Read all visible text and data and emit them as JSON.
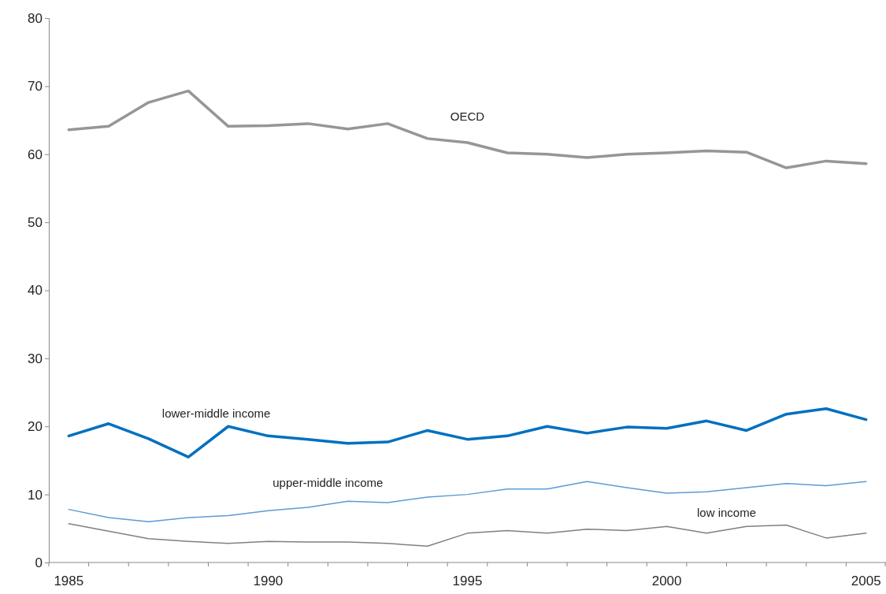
{
  "chart_data": {
    "type": "line",
    "categories": [
      "1985",
      null,
      null,
      null,
      null,
      "1990",
      null,
      null,
      null,
      null,
      "1995",
      null,
      null,
      null,
      null,
      "2000",
      null,
      null,
      null,
      null,
      "2005"
    ],
    "series": [
      {
        "name": "OECD",
        "color": "#969696",
        "values": [
          63.6,
          64.1,
          67.6,
          69.3,
          64.1,
          64.2,
          64.5,
          63.7,
          64.5,
          62.3,
          61.7,
          60.2,
          60.0,
          59.5,
          60.0,
          60.2,
          60.5,
          60.3,
          58.0,
          59.0,
          58.6
        ]
      },
      {
        "name": "lower-middle income",
        "color": "#0070c0",
        "values": [
          18.6,
          20.4,
          18.2,
          15.5,
          20.0,
          18.6,
          18.1,
          17.5,
          17.7,
          19.4,
          18.1,
          18.6,
          20.0,
          19.0,
          19.9,
          19.7,
          20.8,
          19.4,
          21.8,
          22.6,
          21.0
        ]
      },
      {
        "name": "upper-middle income",
        "color": "#5b9bd5",
        "values": [
          7.8,
          6.6,
          6.0,
          6.6,
          6.9,
          7.6,
          8.1,
          9.0,
          8.8,
          9.6,
          10.0,
          10.8,
          10.8,
          11.9,
          11.0,
          10.2,
          10.4,
          11.0,
          11.6,
          11.3,
          11.9
        ]
      },
      {
        "name": "low income",
        "color": "#808080",
        "values": [
          5.7,
          4.6,
          3.5,
          3.1,
          2.8,
          3.1,
          3.0,
          3.0,
          2.8,
          2.4,
          4.3,
          4.7,
          4.3,
          4.9,
          4.7,
          5.3,
          4.3,
          5.3,
          5.5,
          3.6,
          4.3
        ]
      }
    ],
    "ylim": [
      0,
      80
    ],
    "yticks": [
      0,
      10,
      20,
      30,
      40,
      50,
      60,
      70,
      80
    ],
    "grid": false,
    "legend": false,
    "marker": "none",
    "line_style": "solid"
  }
}
